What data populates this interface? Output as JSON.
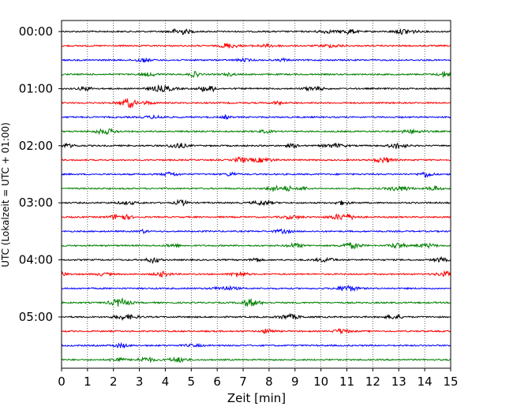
{
  "chart_data": {
    "type": "line",
    "title": "",
    "xlabel": "Zeit  [min]",
    "ylabel": "UTC (Lokalzeit = UTC + 01:00)",
    "xlim": [
      0,
      15
    ],
    "x_ticks": [
      0,
      1,
      2,
      3,
      4,
      5,
      6,
      7,
      8,
      9,
      10,
      11,
      12,
      13,
      14,
      15
    ],
    "grid": "vertical dotted",
    "y_tick_labels": [
      "00:00",
      "01:00",
      "02:00",
      "03:00",
      "04:00",
      "05:00"
    ],
    "y_tick_rows": [
      0,
      4,
      8,
      12,
      16,
      20
    ],
    "trace_count": 24,
    "trace_interval_minutes": 15,
    "trace_colors": [
      "#000000",
      "#ff0000",
      "#0000ff",
      "#008000"
    ],
    "series": [
      {
        "start": "00:00",
        "color": "#000000"
      },
      {
        "start": "00:15",
        "color": "#ff0000"
      },
      {
        "start": "00:30",
        "color": "#0000ff"
      },
      {
        "start": "00:45",
        "color": "#008000"
      },
      {
        "start": "01:00",
        "color": "#000000"
      },
      {
        "start": "01:15",
        "color": "#ff0000"
      },
      {
        "start": "01:30",
        "color": "#0000ff"
      },
      {
        "start": "01:45",
        "color": "#008000"
      },
      {
        "start": "02:00",
        "color": "#000000"
      },
      {
        "start": "02:15",
        "color": "#ff0000"
      },
      {
        "start": "02:30",
        "color": "#0000ff"
      },
      {
        "start": "02:45",
        "color": "#008000"
      },
      {
        "start": "03:00",
        "color": "#000000"
      },
      {
        "start": "03:15",
        "color": "#ff0000"
      },
      {
        "start": "03:30",
        "color": "#0000ff"
      },
      {
        "start": "03:45",
        "color": "#008000"
      },
      {
        "start": "04:00",
        "color": "#000000"
      },
      {
        "start": "04:15",
        "color": "#ff0000"
      },
      {
        "start": "04:30",
        "color": "#0000ff"
      },
      {
        "start": "04:45",
        "color": "#008000"
      },
      {
        "start": "05:00",
        "color": "#000000"
      },
      {
        "start": "05:15",
        "color": "#ff0000"
      },
      {
        "start": "05:30",
        "color": "#0000ff"
      },
      {
        "start": "05:45",
        "color": "#008000"
      }
    ]
  }
}
